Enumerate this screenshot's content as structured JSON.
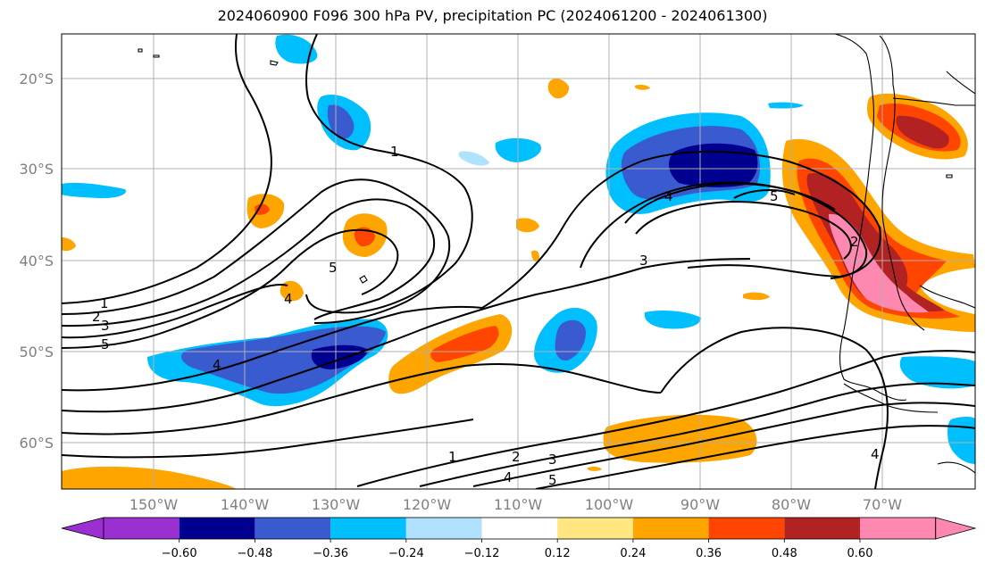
{
  "title": "2024060900 F096 300 hPa PV, precipitation PC (2024061200 - 2024061300)",
  "map": {
    "lat_labels": [
      "20°S",
      "30°S",
      "40°S",
      "50°S",
      "60°S"
    ],
    "lon_labels": [
      "150°W",
      "140°W",
      "130°W",
      "120°W",
      "110°W",
      "100°W",
      "90°W",
      "80°W",
      "70°W"
    ],
    "contour_labels": [
      "1",
      "2",
      "3",
      "4",
      "5"
    ],
    "colors": {
      "land_outline": "#000000",
      "gridline": "#b0b0b0",
      "contour": "#000000"
    }
  },
  "colorbar": {
    "tick_labels": [
      "−0.60",
      "−0.48",
      "−0.36",
      "−0.24",
      "−0.12",
      "0.12",
      "0.24",
      "0.36",
      "0.48",
      "0.60"
    ],
    "colors": [
      "#9b30d0",
      "#000090",
      "#3a5ad0",
      "#00bfff",
      "#b0e2ff",
      "#ffffff",
      "#ffe680",
      "#ffa500",
      "#ff4500",
      "#b22222",
      "#ff88b0"
    ]
  }
}
